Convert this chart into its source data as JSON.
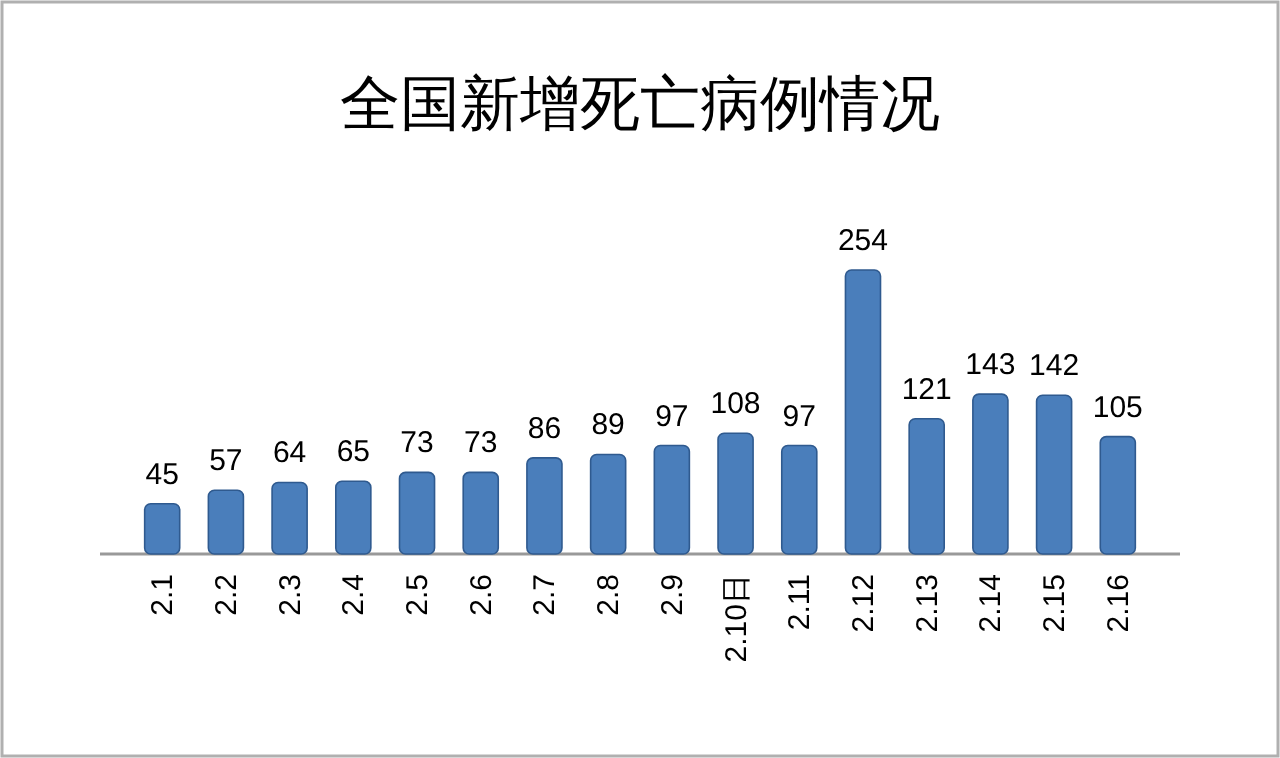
{
  "chart_data": {
    "type": "bar",
    "title": "全国新增死亡病例情况",
    "categories": [
      "2.1",
      "2.2",
      "2.3",
      "2.4",
      "2.5",
      "2.6",
      "2.7",
      "2.8",
      "2.9",
      "2.10日",
      "2.11",
      "2.12",
      "2.13",
      "2.14",
      "2.15",
      "2.16"
    ],
    "values": [
      45,
      57,
      64,
      65,
      73,
      73,
      86,
      89,
      97,
      108,
      97,
      254,
      121,
      143,
      142,
      105
    ],
    "color": "#4a7ebb",
    "data_labels": true
  }
}
